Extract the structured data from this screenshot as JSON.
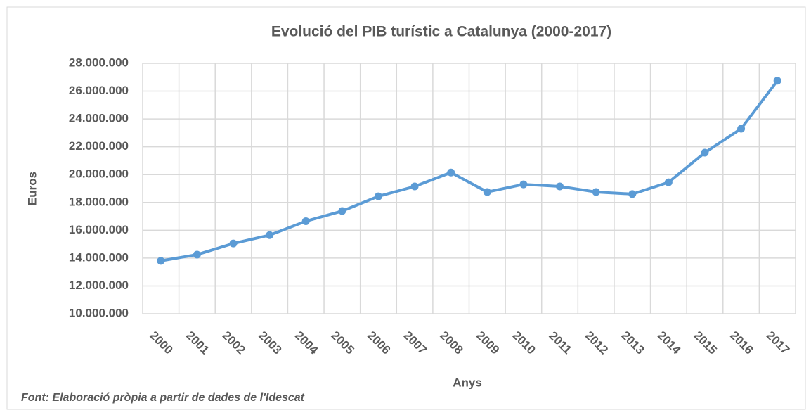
{
  "chart_data": {
    "type": "line",
    "title": "Evolució del PIB turístic a Catalunya (2000-2017)",
    "x_label": "Anys",
    "y_label": "Euros",
    "source": "Font: Elaboració pròpia a partir de dades de l'Idescat",
    "categories": [
      "2000",
      "2001",
      "2002",
      "2003",
      "2004",
      "2005",
      "2006",
      "2007",
      "2008",
      "2009",
      "2010",
      "2011",
      "2012",
      "2013",
      "2014",
      "2015",
      "2016",
      "2017"
    ],
    "series": [
      {
        "name": "PIB turístic",
        "color": "#5b9bd5",
        "values": [
          13800000,
          14250000,
          15050000,
          15650000,
          16650000,
          17380000,
          18440000,
          19150000,
          20150000,
          18750000,
          19300000,
          19150000,
          18750000,
          18600000,
          19450000,
          21580000,
          23300000,
          26750000
        ]
      }
    ],
    "ylim": [
      10000000,
      28000000
    ],
    "yticks": [
      {
        "value": 10000000,
        "label": "10.000.000"
      },
      {
        "value": 12000000,
        "label": "12.000.000"
      },
      {
        "value": 14000000,
        "label": "14.000.000"
      },
      {
        "value": 16000000,
        "label": "16.000.000"
      },
      {
        "value": 18000000,
        "label": "18.000.000"
      },
      {
        "value": 20000000,
        "label": "20.000.000"
      },
      {
        "value": 22000000,
        "label": "22.000.000"
      },
      {
        "value": 24000000,
        "label": "24.000.000"
      },
      {
        "value": 26000000,
        "label": "26.000.000"
      },
      {
        "value": 28000000,
        "label": "28.000.000"
      }
    ],
    "grid": true
  }
}
